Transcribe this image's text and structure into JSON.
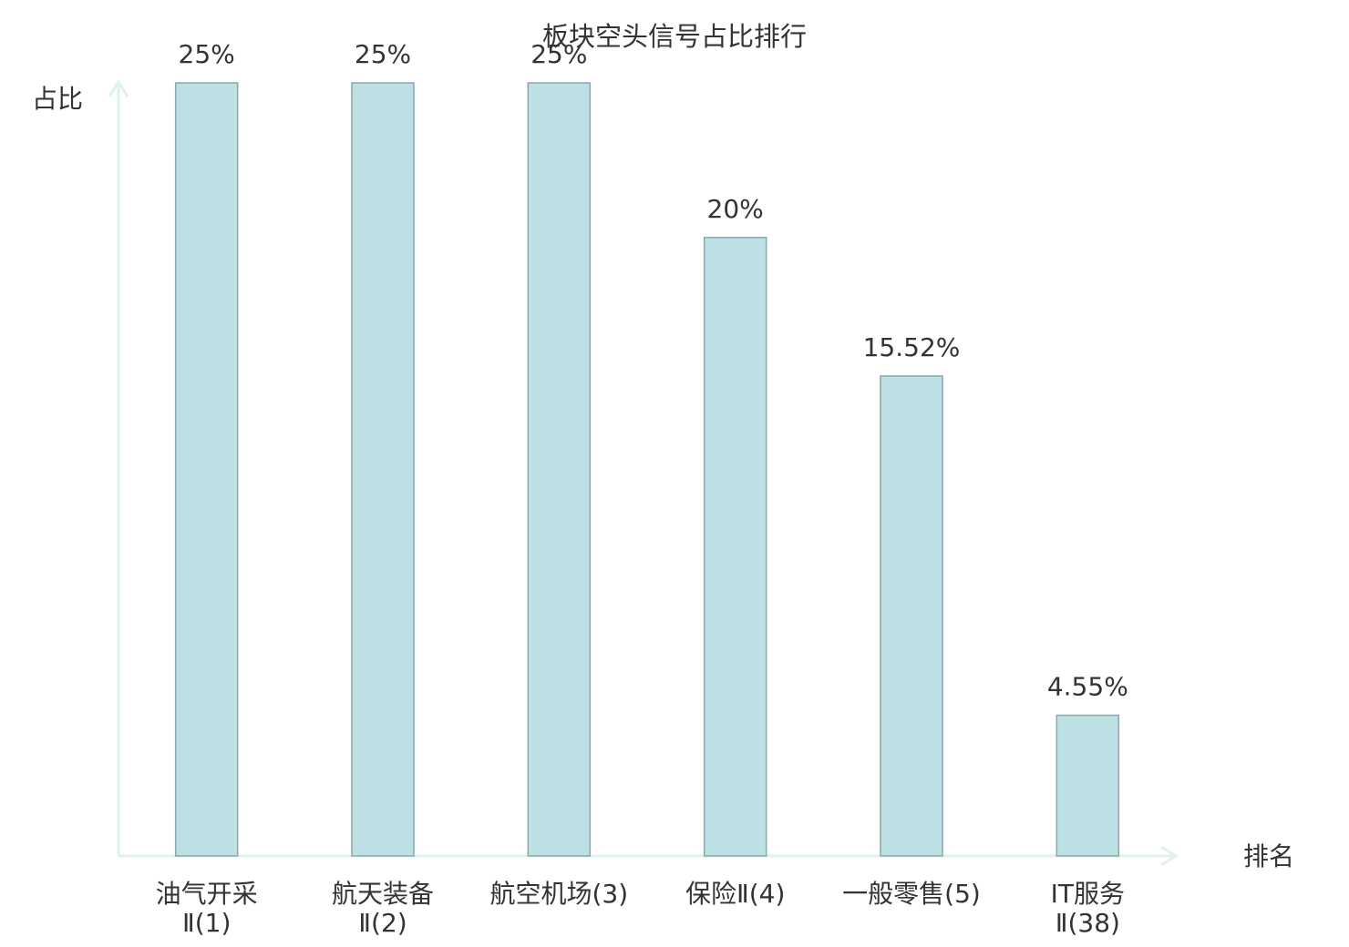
{
  "chart_data": {
    "type": "bar",
    "title": "板块空头信号占比排行",
    "y_label": "占比",
    "x_label": "排名",
    "categories": [
      [
        "油气开采",
        "Ⅱ(1)"
      ],
      [
        "航天装备",
        "Ⅱ(2)"
      ],
      [
        "航空机场(3)"
      ],
      [
        "保险Ⅱ(4)"
      ],
      [
        "一般零售(5)"
      ],
      [
        "IT服务",
        "Ⅱ(38)"
      ]
    ],
    "category_colors": [
      "#222222",
      "#222222",
      "#222222",
      "#222222",
      "#222222",
      "#e8121b"
    ],
    "values": [
      25,
      25,
      25,
      20,
      15.52,
      4.55
    ],
    "value_labels": [
      "25%",
      "25%",
      "25%",
      "20%",
      "15.52%",
      "4.55%"
    ],
    "color": "#bce0e3",
    "edge_color": "#8aa9ab",
    "axis_color": "#dff2ef",
    "ylim": [
      0,
      25
    ]
  }
}
